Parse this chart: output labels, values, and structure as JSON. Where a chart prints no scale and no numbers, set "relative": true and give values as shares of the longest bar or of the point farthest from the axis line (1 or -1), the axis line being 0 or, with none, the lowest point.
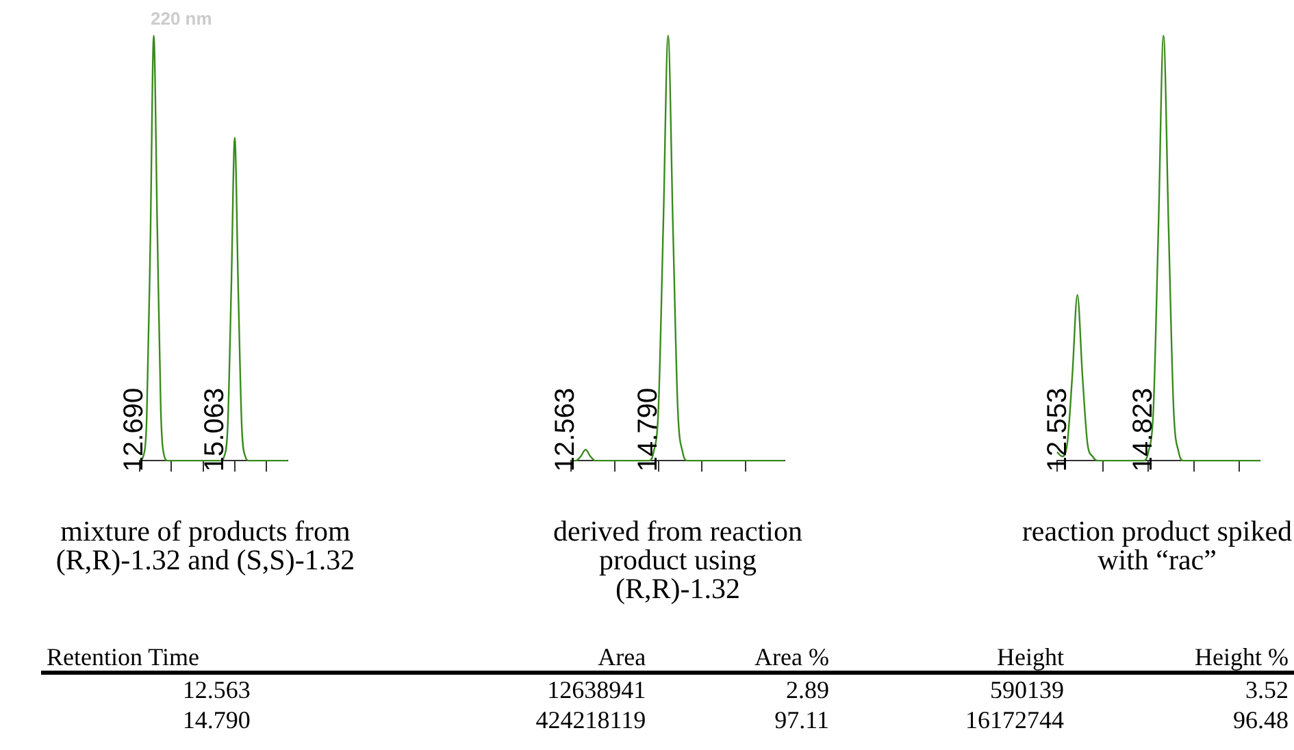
{
  "chart_data": [
    {
      "type": "line",
      "relative": true,
      "title": "220 nm",
      "xlabel": "mixture of products from (R,R)-1.32 and (S,S)-1.32",
      "annotations": [
        "12.690",
        "15.063"
      ],
      "marker": "none",
      "legend": false,
      "categories": [
        null,
        null,
        null,
        null,
        null,
        null,
        null,
        null,
        null,
        null,
        null,
        null,
        null,
        null,
        null,
        null,
        null,
        null,
        null,
        null,
        null,
        null,
        null,
        null,
        null,
        null,
        null,
        null,
        null,
        null,
        null,
        null,
        null,
        null,
        null,
        null,
        null,
        null,
        null,
        null,
        null,
        null,
        null
      ],
      "series": [
        {
          "color": "#3a8a1e",
          "values": [
            0,
            0.01,
            0.1,
            0.5,
            1,
            0.55,
            0.12,
            0.01,
            0,
            0,
            0,
            0,
            0,
            0,
            0,
            0,
            0,
            0,
            0,
            0,
            0,
            0,
            0,
            0,
            0.01,
            0.08,
            0.4,
            0.76,
            0.4,
            0.08,
            0.01,
            0,
            0,
            0,
            0,
            0,
            0,
            0,
            0,
            0,
            0,
            0,
            0
          ]
        }
      ]
    },
    {
      "type": "line",
      "relative": true,
      "xlabel": "derived from reaction product using (R,R)-1.32",
      "annotations": [
        "12.563",
        "14.790"
      ],
      "marker": "none",
      "legend": false,
      "categories": [
        null,
        null,
        null,
        null,
        null,
        null,
        null,
        null,
        null,
        null,
        null,
        null,
        null,
        null,
        null,
        null,
        null,
        null,
        null,
        null,
        null,
        null,
        null,
        null,
        null,
        null,
        null,
        null,
        null,
        null,
        null,
        null,
        null,
        null,
        null,
        null,
        null,
        null,
        null,
        null,
        null,
        null,
        null,
        null,
        null
      ],
      "series": [
        {
          "color": "#3a8a1e",
          "values": [
            0,
            0,
            0.01,
            0.026,
            0.01,
            0,
            0,
            0,
            0,
            0,
            0,
            0,
            0,
            0,
            0,
            0,
            0,
            0.02,
            0.12,
            0.55,
            1,
            0.55,
            0.12,
            0.02,
            0,
            0,
            0,
            0,
            0,
            0,
            0,
            0,
            0,
            0,
            0,
            0,
            0,
            0,
            0,
            0,
            0,
            0,
            0,
            0,
            0
          ]
        }
      ]
    },
    {
      "type": "line",
      "relative": true,
      "xlabel": "reaction product spiked with “rac”",
      "annotations": [
        "12.553",
        "14.823"
      ],
      "marker": "none",
      "legend": false,
      "categories": [
        null,
        null,
        null,
        null,
        null,
        null,
        null,
        null,
        null,
        null,
        null,
        null,
        null,
        null,
        null,
        null,
        null,
        null,
        null,
        null,
        null,
        null,
        null,
        null,
        null,
        null,
        null,
        null,
        null,
        null,
        null,
        null,
        null,
        null,
        null,
        null,
        null,
        null,
        null,
        null,
        null
      ],
      "series": [
        {
          "color": "#3a8a1e",
          "values": [
            0.02,
            0.01,
            0.04,
            0.2,
            0.39,
            0.2,
            0.04,
            0.01,
            0,
            0,
            0,
            0,
            0,
            0,
            0,
            0,
            0,
            0,
            0.02,
            0.12,
            0.55,
            1,
            0.55,
            0.12,
            0.02,
            0,
            0,
            0,
            0,
            0,
            0,
            0,
            0,
            0,
            0,
            0,
            0,
            0,
            0,
            0,
            0
          ]
        }
      ]
    },
    {
      "type": "other",
      "categories": [
        "Retention Time",
        "Area",
        "Area %",
        "Height",
        "Height %"
      ],
      "annotations": [
        "12.563",
        "12638941",
        "2.89",
        "590139",
        "3.52",
        "14.790",
        "424218119",
        "97.11",
        "16172744",
        "96.48"
      ]
    }
  ]
}
